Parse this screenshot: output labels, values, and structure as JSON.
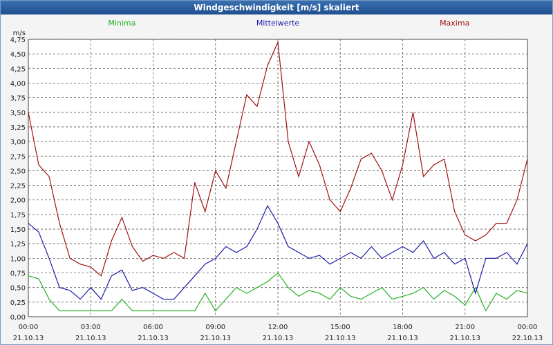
{
  "window": {
    "title": "Windgeschwindigkeit [m/s] skaliert"
  },
  "chart_data": {
    "type": "line",
    "title": "Windgeschwindigkeit [m/s] skaliert",
    "ylabel": "m/s",
    "ylim": [
      0,
      4.75
    ],
    "yticks": [
      "0,00",
      "0,25",
      "0,50",
      "0,75",
      "1,00",
      "1,25",
      "1,50",
      "1,75",
      "2,00",
      "2,25",
      "2,50",
      "2,75",
      "3,00",
      "3,25",
      "3,50",
      "3,75",
      "4,00",
      "4,25",
      "4,50",
      "4,75"
    ],
    "xticks": [
      {
        "time": "00:00",
        "date": "21.10.13"
      },
      {
        "time": "03:00",
        "date": "21.10.13"
      },
      {
        "time": "06:00",
        "date": "21.10.13"
      },
      {
        "time": "09:00",
        "date": "21.10.13"
      },
      {
        "time": "12:00",
        "date": "21.10.13"
      },
      {
        "time": "15:00",
        "date": "21.10.13"
      },
      {
        "time": "18:00",
        "date": "21.10.13"
      },
      {
        "time": "21:00",
        "date": "21.10.13"
      },
      {
        "time": "00:00",
        "date": "22.10.13"
      }
    ],
    "grid": true,
    "legend_position": "top",
    "series": [
      {
        "name": "Minima",
        "color": "#22b022",
        "x": [
          0,
          0.5,
          1,
          1.5,
          2,
          2.5,
          3,
          3.5,
          4,
          4.5,
          5,
          5.5,
          6,
          6.5,
          7,
          7.5,
          8,
          8.5,
          9,
          9.5,
          10,
          10.5,
          11,
          11.5,
          12,
          12.5,
          13,
          13.5,
          14,
          14.5,
          15,
          15.5,
          16,
          16.5,
          17,
          17.5,
          18,
          18.5,
          19,
          19.5,
          20,
          20.5,
          21,
          21.5,
          22,
          22.5,
          23,
          23.5,
          24
        ],
        "values": [
          0.7,
          0.65,
          0.3,
          0.1,
          0.1,
          0.1,
          0.1,
          0.1,
          0.1,
          0.3,
          0.1,
          0.1,
          0.1,
          0.1,
          0.1,
          0.1,
          0.1,
          0.4,
          0.1,
          0.3,
          0.5,
          0.4,
          0.5,
          0.6,
          0.75,
          0.5,
          0.35,
          0.45,
          0.4,
          0.3,
          0.5,
          0.35,
          0.3,
          0.4,
          0.5,
          0.3,
          0.35,
          0.4,
          0.5,
          0.3,
          0.45,
          0.35,
          0.2,
          0.5,
          0.1,
          0.4,
          0.3,
          0.45,
          0.4
        ]
      },
      {
        "name": "Mittelwerte",
        "color": "#1a1aaa",
        "x": [
          0,
          0.5,
          1,
          1.5,
          2,
          2.5,
          3,
          3.5,
          4,
          4.5,
          5,
          5.5,
          6,
          6.5,
          7,
          7.5,
          8,
          8.5,
          9,
          9.5,
          10,
          10.5,
          11,
          11.5,
          12,
          12.5,
          13,
          13.5,
          14,
          14.5,
          15,
          15.5,
          16,
          16.5,
          17,
          17.5,
          18,
          18.5,
          19,
          19.5,
          20,
          20.5,
          21,
          21.5,
          22,
          22.5,
          23,
          23.5,
          24
        ],
        "values": [
          1.6,
          1.45,
          1.0,
          0.5,
          0.45,
          0.3,
          0.5,
          0.3,
          0.7,
          0.8,
          0.45,
          0.5,
          0.4,
          0.3,
          0.3,
          0.5,
          0.7,
          0.9,
          1.0,
          1.2,
          1.1,
          1.2,
          1.5,
          1.9,
          1.6,
          1.2,
          1.1,
          1.0,
          1.05,
          0.9,
          1.0,
          1.1,
          1.0,
          1.2,
          1.0,
          1.1,
          1.2,
          1.1,
          1.3,
          1.0,
          1.1,
          0.9,
          1.0,
          0.4,
          1.0,
          1.0,
          1.1,
          0.9,
          1.25
        ]
      },
      {
        "name": "Maxima",
        "color": "#a01010",
        "x": [
          0,
          0.5,
          1,
          1.5,
          2,
          2.5,
          3,
          3.5,
          4,
          4.5,
          5,
          5.5,
          6,
          6.5,
          7,
          7.5,
          8,
          8.5,
          9,
          9.5,
          10,
          10.5,
          11,
          11.5,
          12,
          12.5,
          13,
          13.5,
          14,
          14.5,
          15,
          15.5,
          16,
          16.5,
          17,
          17.5,
          18,
          18.5,
          19,
          19.5,
          20,
          20.5,
          21,
          21.5,
          22,
          22.5,
          23,
          23.5,
          24
        ],
        "values": [
          3.5,
          2.6,
          2.4,
          1.6,
          1.0,
          0.9,
          0.85,
          0.7,
          1.3,
          1.7,
          1.2,
          0.95,
          1.05,
          1.0,
          1.1,
          1.0,
          2.3,
          1.8,
          2.5,
          2.2,
          3.0,
          3.8,
          3.6,
          4.3,
          4.7,
          3.0,
          2.4,
          3.0,
          2.6,
          2.0,
          1.8,
          2.2,
          2.7,
          2.8,
          2.5,
          2.0,
          2.6,
          3.5,
          2.4,
          2.6,
          2.7,
          1.8,
          1.4,
          1.3,
          1.4,
          1.6,
          1.6,
          2.0,
          2.7
        ]
      }
    ]
  }
}
